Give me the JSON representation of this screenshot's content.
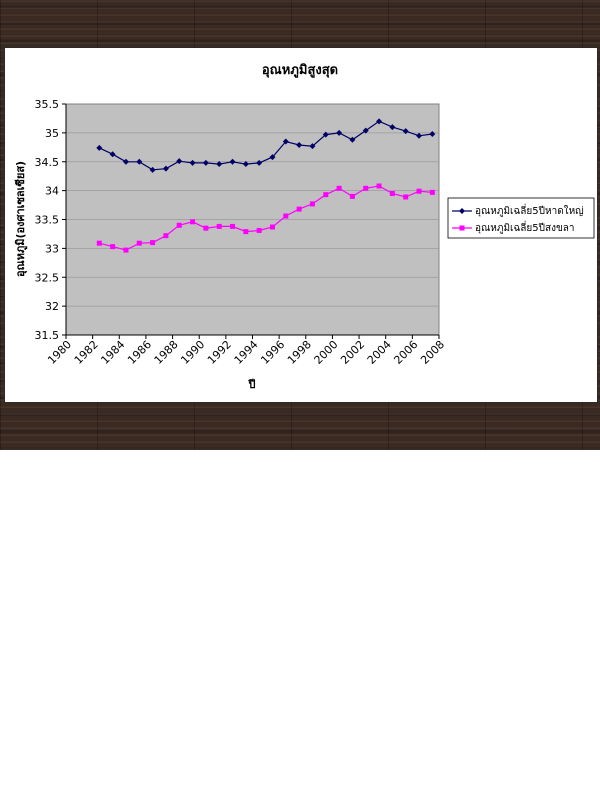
{
  "chart_data": {
    "type": "line",
    "title": "อุณหภูมิสูงสุด",
    "xlabel": "ปี",
    "ylabel": "อุณหภูมิ(องศาเซลเซียส)",
    "xlim": [
      1980,
      2008
    ],
    "ylim": [
      31.5,
      35.5
    ],
    "x_ticks": [
      "1980",
      "1982",
      "1984",
      "1986",
      "1988",
      "1990",
      "1992",
      "1994",
      "1996",
      "1998",
      "2000",
      "2002",
      "2004",
      "2006",
      "2008"
    ],
    "y_ticks": [
      "31.5",
      "32",
      "32.5",
      "33",
      "33.5",
      "34",
      "34.5",
      "35",
      "35.5"
    ],
    "grid": "horizontal",
    "legend_position": "right",
    "x": [
      1982.5,
      1983.5,
      1984.5,
      1985.5,
      1986.5,
      1987.5,
      1988.5,
      1989.5,
      1990.5,
      1991.5,
      1992.5,
      1993.5,
      1994.5,
      1995.5,
      1996.5,
      1997.5,
      1998.5,
      1999.5,
      2000.5,
      2001.5,
      2002.5,
      2003.5,
      2004.5,
      2005.5,
      2006.5,
      2007.5
    ],
    "series": [
      {
        "name": "อุณหภูมิเฉลี่ย5ปีหาดใหญ่",
        "color": "#000066",
        "marker": "diamond",
        "values": [
          34.74,
          34.63,
          34.5,
          34.5,
          34.36,
          34.38,
          34.51,
          34.48,
          34.48,
          34.46,
          34.5,
          34.46,
          34.48,
          34.58,
          34.85,
          34.79,
          34.77,
          34.97,
          35.0,
          34.88,
          35.04,
          35.2,
          35.1,
          35.03,
          34.95,
          34.98
        ]
      },
      {
        "name": "อุณหภูมิเฉลี่ย5ปีสงขลา",
        "color": "#ff00ff",
        "marker": "square",
        "values": [
          33.09,
          33.03,
          32.97,
          33.09,
          33.1,
          33.22,
          33.4,
          33.46,
          33.35,
          33.38,
          33.38,
          33.29,
          33.31,
          33.37,
          33.56,
          33.68,
          33.77,
          33.93,
          34.04,
          33.9,
          34.04,
          34.08,
          33.95,
          33.89,
          33.99,
          33.97
        ]
      }
    ]
  }
}
